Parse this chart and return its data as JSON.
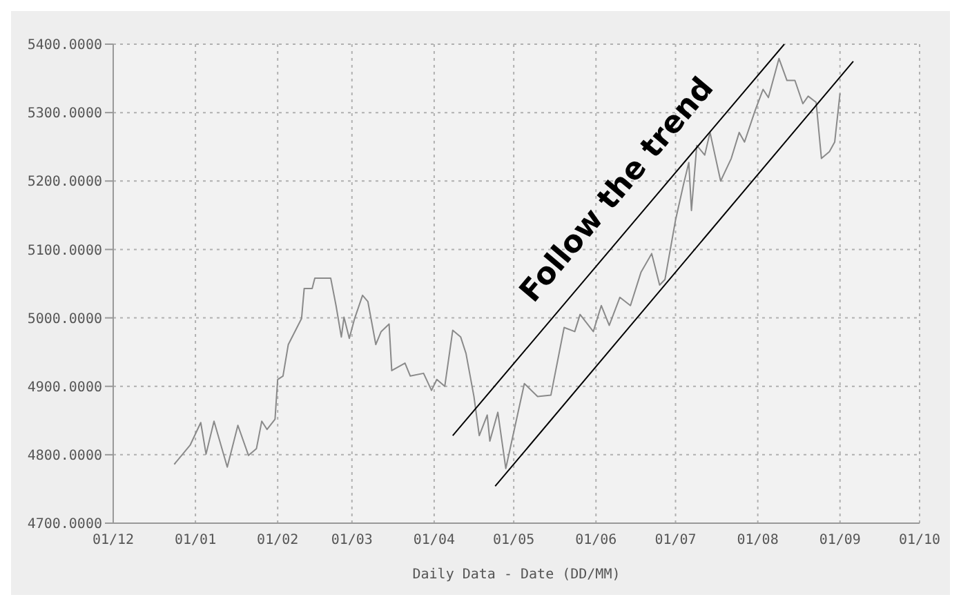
{
  "chart_data": {
    "type": "line",
    "xlabel": "Daily Data - Date (DD/MM)",
    "annotations": [
      "Follow the trend"
    ],
    "x": [
      "2004-12-24",
      "2004-12-30",
      "2005-01-03",
      "2005-01-05",
      "2005-01-08",
      "2005-01-13",
      "2005-01-17",
      "2005-01-21",
      "2005-01-24",
      "2005-01-26",
      "2005-01-28",
      "2005-01-31",
      "2005-02-01",
      "2005-02-03",
      "2005-02-05",
      "2005-02-10",
      "2005-02-11",
      "2005-02-14",
      "2005-02-15",
      "2005-02-21",
      "2005-02-23",
      "2005-02-25",
      "2005-02-26",
      "2005-02-28",
      "2005-03-02",
      "2005-03-05",
      "2005-03-07",
      "2005-03-10",
      "2005-03-12",
      "2005-03-15",
      "2005-03-16",
      "2005-03-21",
      "2005-03-23",
      "2005-03-28",
      "2005-03-31",
      "2005-04-02",
      "2005-04-05",
      "2005-04-08",
      "2005-04-11",
      "2005-04-13",
      "2005-04-16",
      "2005-04-18",
      "2005-04-21",
      "2005-04-22",
      "2005-04-25",
      "2005-04-28",
      "2005-05-05",
      "2005-05-10",
      "2005-05-15",
      "2005-05-20",
      "2005-05-24",
      "2005-05-26",
      "2005-05-31",
      "2005-06-03",
      "2005-06-06",
      "2005-06-10",
      "2005-06-14",
      "2005-06-18",
      "2005-06-22",
      "2005-06-25",
      "2005-06-27",
      "2005-07-01",
      "2005-07-04",
      "2005-07-06",
      "2005-07-07",
      "2005-07-09",
      "2005-07-12",
      "2005-07-14",
      "2005-07-18",
      "2005-07-22",
      "2005-07-25",
      "2005-07-27",
      "2005-07-31",
      "2005-08-03",
      "2005-08-05",
      "2005-08-09",
      "2005-08-12",
      "2005-08-15",
      "2005-08-18",
      "2005-08-20",
      "2005-08-23",
      "2005-08-25",
      "2005-08-28",
      "2005-08-30",
      "2005-09-01"
    ],
    "xlim": [
      "2004-12-01",
      "2005-10-01"
    ],
    "xticks": [
      {
        "value": "2004-12-01",
        "label": "01/12"
      },
      {
        "value": "2005-01-01",
        "label": "01/01"
      },
      {
        "value": "2005-02-01",
        "label": "01/02"
      },
      {
        "value": "2005-03-01",
        "label": "01/03"
      },
      {
        "value": "2005-04-01",
        "label": "01/04"
      },
      {
        "value": "2005-05-01",
        "label": "01/05"
      },
      {
        "value": "2005-06-01",
        "label": "01/06"
      },
      {
        "value": "2005-07-01",
        "label": "01/07"
      },
      {
        "value": "2005-08-01",
        "label": "01/08"
      },
      {
        "value": "2005-09-01",
        "label": "01/09"
      },
      {
        "value": "2005-10-01",
        "label": "01/10"
      }
    ],
    "series": [
      {
        "color": "#8a8a8a",
        "values": [
          4786,
          4814,
          4847,
          4801,
          4849,
          4782,
          4843,
          4799,
          4809,
          4849,
          4837,
          4852,
          4910,
          4915,
          4961,
          4999,
          5043,
          5043,
          5058,
          5058,
          5018,
          4972,
          5001,
          4970,
          4999,
          5033,
          5024,
          4961,
          4980,
          4991,
          4923,
          4934,
          4915,
          4919,
          4894,
          4910,
          4900,
          4982,
          4972,
          4948,
          4885,
          4828,
          4858,
          4820,
          4862,
          4780,
          4904,
          4885,
          4887,
          4986,
          4980,
          5005,
          4980,
          5018,
          4989,
          5030,
          5018,
          5067,
          5094,
          5048,
          5056,
          5143,
          5195,
          5227,
          5157,
          5252,
          5238,
          5271,
          5200,
          5233,
          5271,
          5257,
          5303,
          5334,
          5322,
          5379,
          5347,
          5347,
          5313,
          5324,
          5315,
          5233,
          5243,
          5257,
          5328
        ]
      },
      {
        "type": "line",
        "color": "#000000",
        "x": [
          "2005-04-08",
          "2005-08-11"
        ],
        "values": [
          4828,
          5400
        ]
      },
      {
        "type": "line",
        "color": "#000000",
        "x": [
          "2005-04-24",
          "2005-09-06"
        ],
        "values": [
          4754,
          5375
        ]
      }
    ],
    "ylim": [
      4700,
      5400
    ],
    "yticks": [
      {
        "value": 4700,
        "label": "4700.0000"
      },
      {
        "value": 4800,
        "label": "4800.0000"
      },
      {
        "value": 4900,
        "label": "4900.0000"
      },
      {
        "value": 5000,
        "label": "5000.0000"
      },
      {
        "value": 5100,
        "label": "5100.0000"
      },
      {
        "value": 5200,
        "label": "5200.0000"
      },
      {
        "value": 5300,
        "label": "5300.0000"
      },
      {
        "value": 5400,
        "label": "5400.0000"
      }
    ],
    "grid": true,
    "marker": "none",
    "line_style": "solid"
  }
}
